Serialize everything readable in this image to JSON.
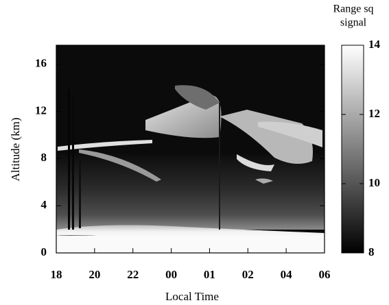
{
  "chart_data": {
    "type": "heatmap",
    "xlabel": "Local Time",
    "ylabel": "Altitude (km)",
    "categories": [
      "18",
      "20",
      "22",
      "00",
      "01",
      "02",
      "04",
      "06"
    ],
    "ylim": [
      0,
      17.6
    ],
    "yticks": [
      0,
      4,
      8,
      12,
      16
    ],
    "colorbar": {
      "title": [
        "Range sq",
        "signal"
      ],
      "lim": [
        8,
        14
      ],
      "ticks": [
        8,
        10,
        12,
        14
      ],
      "colors": [
        "#000000",
        "#ffffff"
      ]
    }
  }
}
